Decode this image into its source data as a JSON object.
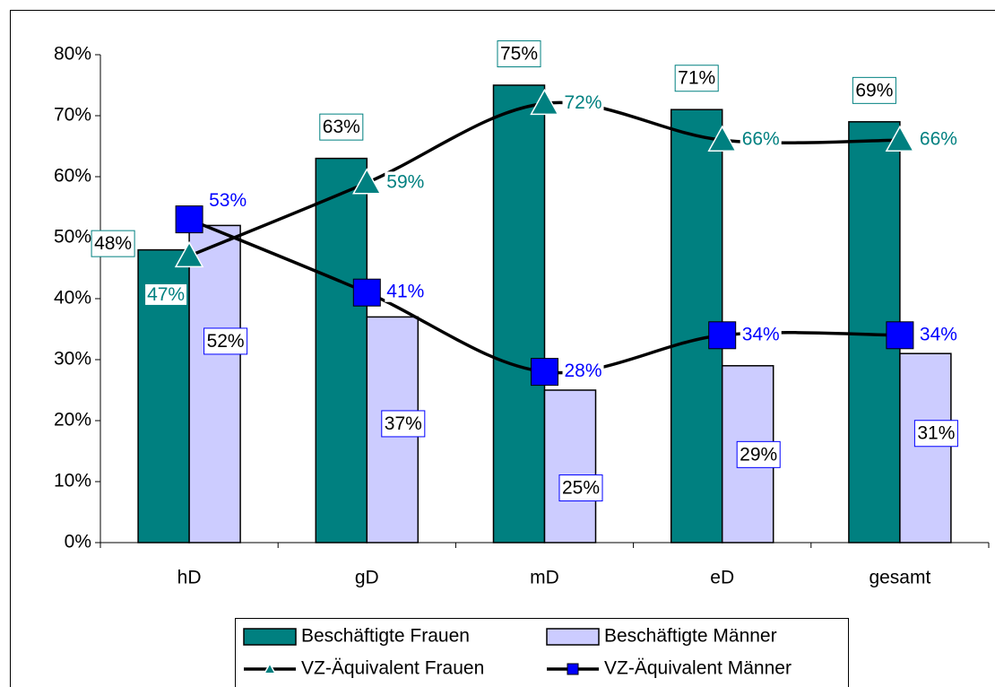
{
  "chart_data": {
    "type": "combo",
    "categories": [
      "hD",
      "gD",
      "mD",
      "eD",
      "gesamt"
    ],
    "series": [
      {
        "name": "Beschäftigte Frauen",
        "type": "bar",
        "color": "#008080",
        "values": [
          48,
          63,
          75,
          71,
          69
        ],
        "value_labels": [
          "48%",
          "63%",
          "75%",
          "71%",
          "69%"
        ]
      },
      {
        "name": "Beschäftigte Männer",
        "type": "bar",
        "color": "#ccccff",
        "values": [
          52,
          37,
          25,
          29,
          31
        ],
        "value_labels": [
          "52%",
          "37%",
          "25%",
          "29%",
          "31%"
        ]
      },
      {
        "name": "VZ-Äquivalent Frauen",
        "type": "line",
        "marker": "triangle",
        "color": "#008080",
        "values": [
          47,
          59,
          72,
          66,
          66
        ],
        "value_labels": [
          "47%",
          "59%",
          "72%",
          "66%",
          "66%"
        ]
      },
      {
        "name": "VZ-Äquivalent Männer",
        "type": "line",
        "marker": "square",
        "color": "#0000ff",
        "values": [
          53,
          41,
          28,
          34,
          34
        ],
        "value_labels": [
          "53%",
          "41%",
          "28%",
          "34%",
          "34%"
        ]
      }
    ],
    "ylim": [
      0,
      80
    ],
    "yticks": [
      {
        "value": 0,
        "label": "0%"
      },
      {
        "value": 10,
        "label": "10%"
      },
      {
        "value": 20,
        "label": "20%"
      },
      {
        "value": 30,
        "label": "30%"
      },
      {
        "value": 40,
        "label": "40%"
      },
      {
        "value": 50,
        "label": "50%"
      },
      {
        "value": 60,
        "label": "60%"
      },
      {
        "value": 70,
        "label": "70%"
      },
      {
        "value": 80,
        "label": "80%"
      }
    ],
    "legend": "bottom"
  }
}
